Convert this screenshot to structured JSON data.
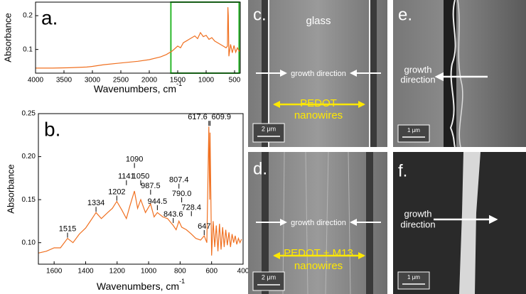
{
  "chart_data": [
    {
      "type": "line",
      "panel_label": "a.",
      "ylabel": "Absorbance",
      "xlabel": "Wavenumbers, cm",
      "xlabel_sup": "-1",
      "xlim": [
        4000,
        400
      ],
      "xticks": [
        4000,
        3500,
        3000,
        2500,
        2000,
        1500,
        1000,
        500
      ],
      "ylim": [
        0.03,
        0.24
      ],
      "yticks": [
        0.1,
        0.2
      ],
      "color": "#f07020",
      "highlight": {
        "xlim": [
          1620,
          420
        ],
        "color": "#2cb82c"
      },
      "x": [
        4000,
        3700,
        3400,
        3100,
        3000,
        2800,
        2500,
        2200,
        2000,
        1800,
        1700,
        1600,
        1500,
        1450,
        1400,
        1350,
        1300,
        1250,
        1200,
        1150,
        1100,
        1050,
        1000,
        950,
        900,
        850,
        800,
        750,
        700,
        650,
        625,
        617,
        610,
        600,
        570,
        540,
        510,
        480,
        450,
        420,
        400
      ],
      "values": [
        0.045,
        0.045,
        0.046,
        0.048,
        0.05,
        0.055,
        0.06,
        0.065,
        0.07,
        0.078,
        0.085,
        0.095,
        0.11,
        0.105,
        0.12,
        0.125,
        0.13,
        0.135,
        0.14,
        0.132,
        0.15,
        0.138,
        0.142,
        0.13,
        0.135,
        0.125,
        0.12,
        0.115,
        0.11,
        0.105,
        0.11,
        0.225,
        0.2,
        0.08,
        0.115,
        0.09,
        0.112,
        0.092,
        0.105,
        0.095,
        0.098
      ]
    },
    {
      "type": "line",
      "panel_label": "b.",
      "ylabel": "Absorbance",
      "xlabel": "Wavenumbers, cm",
      "xlabel_sup": "-1",
      "xlim": [
        1700,
        400
      ],
      "xticks": [
        1600,
        1400,
        1200,
        1000,
        800,
        600,
        400
      ],
      "ylim": [
        0.075,
        0.25
      ],
      "yticks": [
        {
          "value": 0.1,
          "label": "0.10"
        },
        0.15,
        {
          "value": 0.2,
          "label": "0.20"
        },
        0.25
      ],
      "color": "#f07020",
      "x": [
        1700,
        1650,
        1600,
        1560,
        1515,
        1480,
        1440,
        1400,
        1370,
        1334,
        1300,
        1260,
        1230,
        1202,
        1170,
        1141,
        1120,
        1090,
        1070,
        1050,
        1020,
        987.5,
        965,
        944.5,
        910,
        880,
        843.6,
        825,
        807.4,
        790,
        760,
        728.4,
        700,
        670,
        647,
        630,
        617.6,
        612,
        609.9,
        600,
        590,
        580,
        570,
        560,
        550,
        540,
        530,
        520,
        510,
        500,
        490,
        480,
        470,
        460,
        450,
        440,
        430,
        420,
        410
      ],
      "values": [
        0.088,
        0.09,
        0.094,
        0.094,
        0.105,
        0.1,
        0.11,
        0.117,
        0.125,
        0.135,
        0.128,
        0.135,
        0.14,
        0.148,
        0.138,
        0.128,
        0.142,
        0.16,
        0.14,
        0.15,
        0.135,
        0.145,
        0.13,
        0.135,
        0.13,
        0.128,
        0.12,
        0.115,
        0.125,
        0.118,
        0.115,
        0.11,
        0.105,
        0.103,
        0.108,
        0.1,
        0.235,
        0.15,
        0.228,
        0.085,
        0.125,
        0.095,
        0.12,
        0.09,
        0.122,
        0.092,
        0.118,
        0.095,
        0.115,
        0.097,
        0.112,
        0.095,
        0.11,
        0.1,
        0.108,
        0.098,
        0.105,
        0.1,
        0.104
      ],
      "annotations": [
        {
          "x": 1515,
          "y": 0.105,
          "text": "1515"
        },
        {
          "x": 1334,
          "y": 0.135,
          "text": "1334"
        },
        {
          "x": 1202,
          "y": 0.148,
          "text": "1202"
        },
        {
          "x": 1141,
          "y": 0.166,
          "text": "1141"
        },
        {
          "x": 1090,
          "y": 0.186,
          "text": "1090"
        },
        {
          "x": 1050,
          "y": 0.166,
          "text": "1050"
        },
        {
          "x": 987.5,
          "y": 0.155,
          "text": "987.5"
        },
        {
          "x": 944.5,
          "y": 0.137,
          "text": "944.5"
        },
        {
          "x": 843.6,
          "y": 0.122,
          "text": "843.6"
        },
        {
          "x": 807.4,
          "y": 0.162,
          "text": "807.4"
        },
        {
          "x": 790,
          "y": 0.146,
          "text": "790.0"
        },
        {
          "x": 728.4,
          "y": 0.13,
          "text": "728.4"
        },
        {
          "x": 647,
          "y": 0.108,
          "text": "647"
        },
        {
          "x": 617.6,
          "y": 0.235,
          "text": "617.6"
        },
        {
          "x": 609.9,
          "y": 0.235,
          "text": "609.9"
        }
      ]
    }
  ],
  "panels": {
    "c": {
      "label": "c.",
      "title": "glass",
      "arrow_label": "growth direction",
      "caption": [
        "PEDOT",
        "nanowires"
      ],
      "scale": "2 μm"
    },
    "e": {
      "label": "e.",
      "arrow_label": [
        "growth",
        "direction"
      ],
      "scale": "1 μm"
    },
    "d": {
      "label": "d.",
      "arrow_label": "growth direction",
      "caption": [
        "PEDOT + M13",
        "nanowires"
      ],
      "scale": "2 μm"
    },
    "f": {
      "label": "f.",
      "arrow_label": [
        "growth",
        "direction"
      ],
      "scale": "1 μm"
    }
  }
}
